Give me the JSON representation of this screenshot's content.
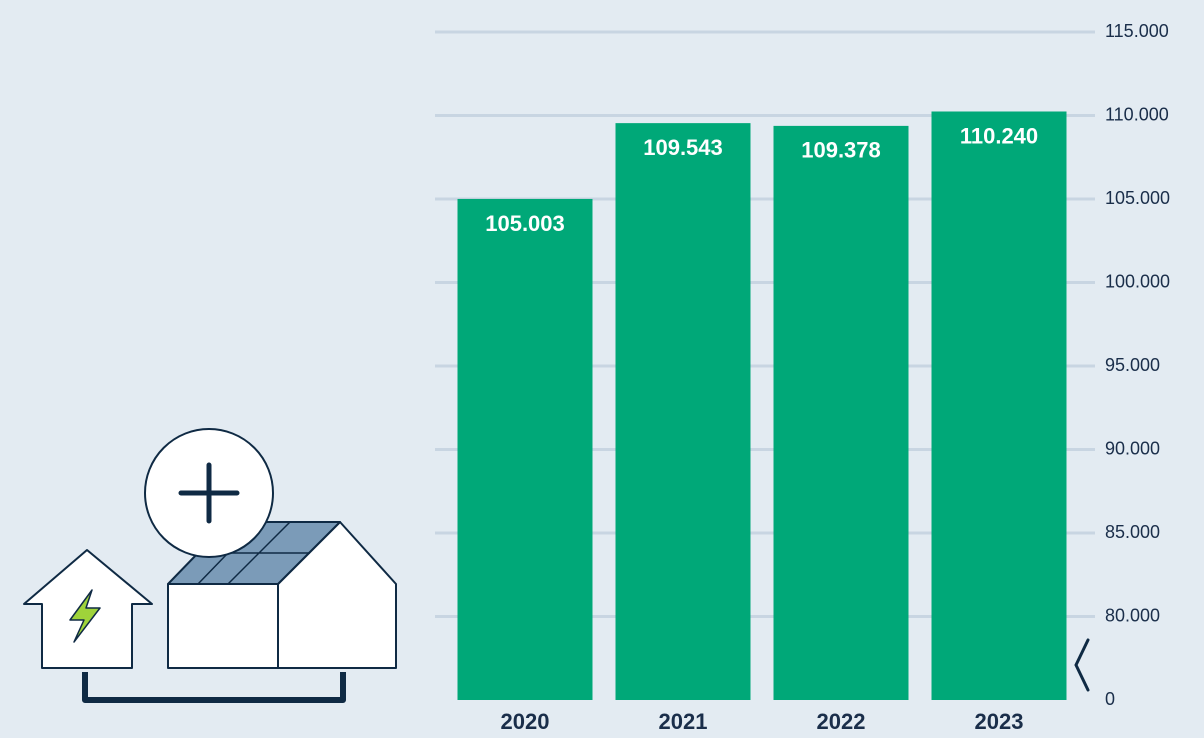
{
  "chart_data": {
    "type": "bar",
    "categories": [
      "2020",
      "2021",
      "2022",
      "2023"
    ],
    "values": [
      105003,
      109543,
      109378,
      110240
    ],
    "value_labels": [
      "105.003",
      "109.543",
      "109.378",
      "110.240"
    ],
    "color": "#00a878",
    "ylim": [
      0,
      115000
    ],
    "yticks": [
      0,
      {
        "value": 80000,
        "label": "80.000"
      },
      {
        "value": 85000,
        "label": "85.000"
      },
      {
        "value": 90000,
        "label": "90.000"
      },
      {
        "value": 95000,
        "label": "95.000"
      },
      {
        "value": 100000,
        "label": "100.000"
      },
      {
        "value": 105000,
        "label": "105.000"
      },
      {
        "value": 110000,
        "label": "110.000"
      },
      {
        "value": 115000,
        "label": "115.000"
      }
    ],
    "axis_break": true,
    "grid": true
  }
}
